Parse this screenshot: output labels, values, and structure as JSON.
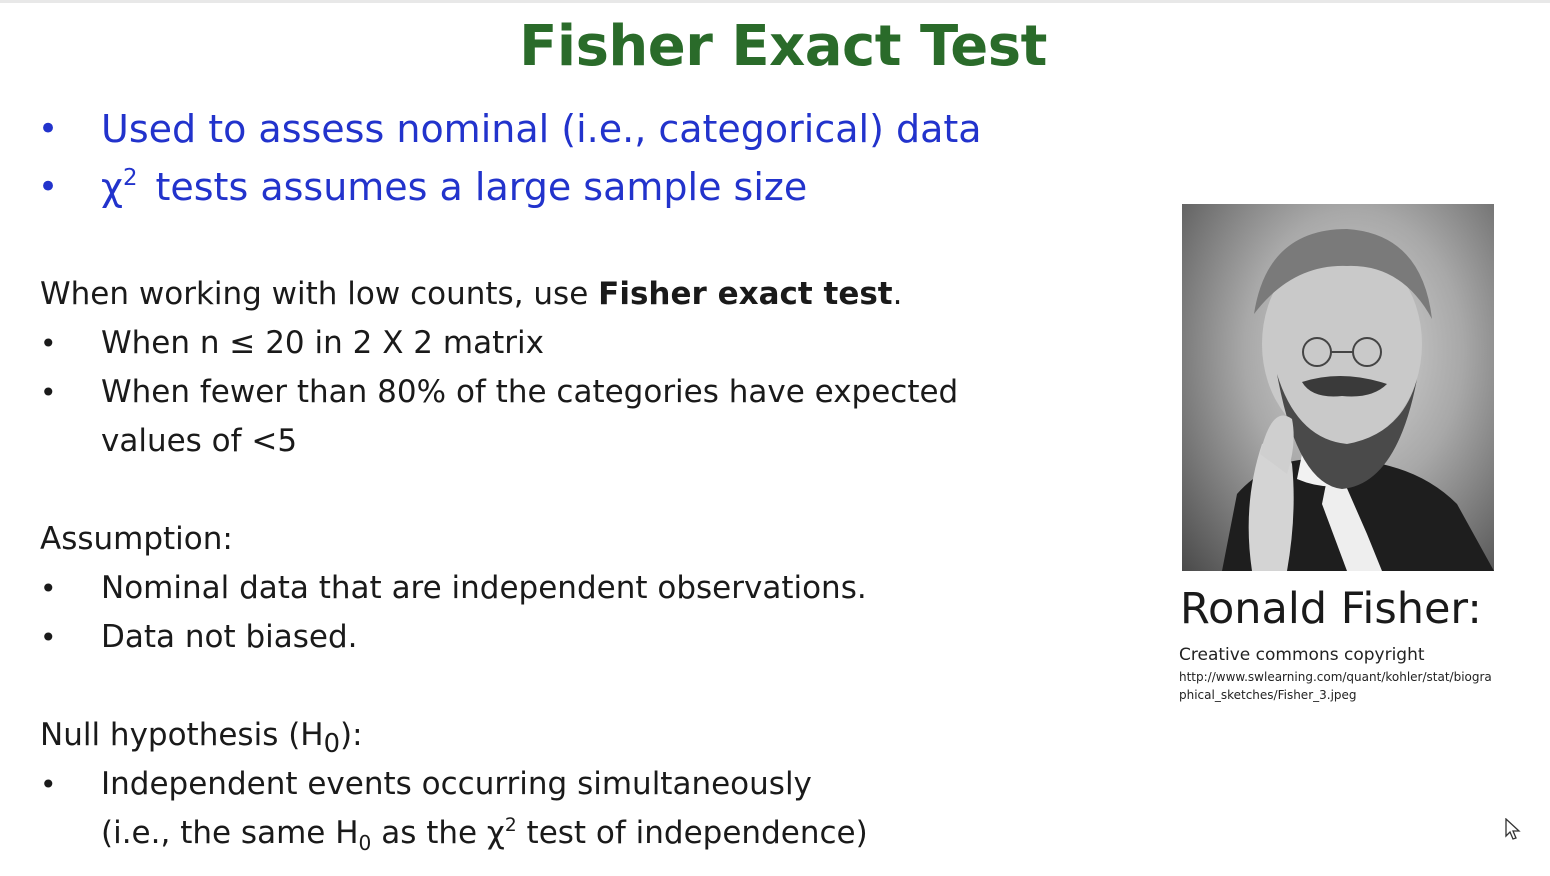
{
  "slide": {
    "title": "Fisher Exact Test",
    "blue_bullets": [
      {
        "text": "Used to assess nominal (i.e., categorical) data"
      },
      {
        "prefix": "χ",
        "sup": "2",
        "text": "tests assumes a large sample size"
      }
    ],
    "low_counts": {
      "intro_prefix": "When working with low counts, use ",
      "intro_bold": "Fisher exact test",
      "intro_suffix": ".",
      "item1_prefix": "When n ",
      "item1_symbol": "≤",
      "item1_suffix": " 20 in 2 X 2 matrix",
      "item2_line1": "When fewer than 80% of the categories have expected",
      "item2_line2": "values of <5"
    },
    "assumption": {
      "heading": "Assumption:",
      "items": [
        "Nominal data that are independent observations.",
        "Data not biased."
      ]
    },
    "null_hypothesis": {
      "heading_prefix": "Null hypothesis (H",
      "heading_sub": "0",
      "heading_suffix": "):",
      "item_line1": "Independent events occurring simultaneously",
      "item_line2_a": "(i.e., the same H",
      "item_line2_sub": "0",
      "item_line2_b": " as the χ",
      "item_line2_sup": "2",
      "item_line2_c": " test of independence)"
    },
    "bullet_char": "•",
    "colors": {
      "title": "#2a6b2a",
      "blue_text": "#2233cc",
      "body_text": "#1a1a1a"
    }
  },
  "portrait": {
    "name": "Ronald Fisher:",
    "copyright": "Creative commons copyright",
    "url": "http://www.swlearning.com/quant/kohler/stat/biographical_sketches/Fisher_3.jpeg"
  },
  "cursor": {
    "icon": "mouse-pointer-icon"
  }
}
